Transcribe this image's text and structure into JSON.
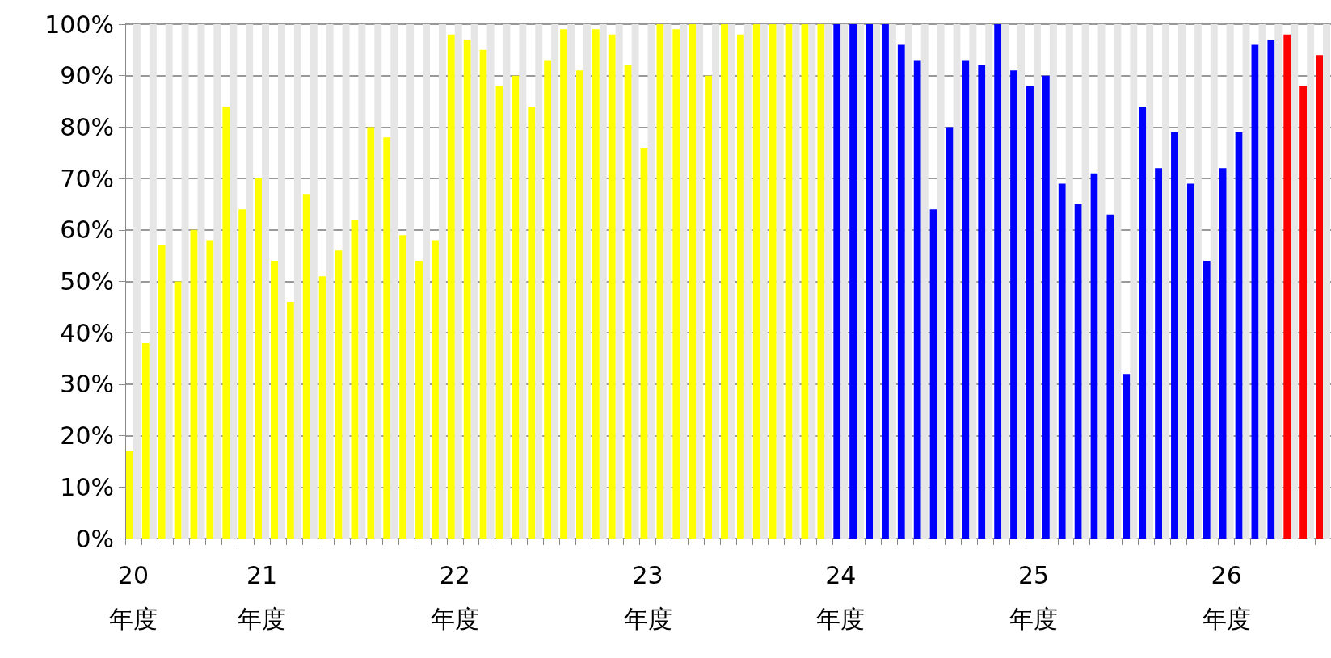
{
  "chart_data": {
    "type": "bar",
    "categories": [
      "20\n年度",
      null,
      null,
      null,
      null,
      null,
      null,
      null,
      "21\n年度",
      null,
      null,
      null,
      null,
      null,
      null,
      null,
      null,
      null,
      null,
      null,
      "22\n年度",
      null,
      null,
      null,
      null,
      null,
      null,
      null,
      null,
      null,
      null,
      null,
      "23\n年度",
      null,
      null,
      null,
      null,
      null,
      null,
      null,
      null,
      null,
      null,
      null,
      "24\n年度",
      null,
      null,
      null,
      null,
      null,
      null,
      null,
      null,
      null,
      null,
      null,
      "25\n年度",
      null,
      null,
      null,
      null,
      null,
      null,
      null,
      null,
      null,
      null,
      null,
      "26\n年度",
      null,
      null,
      null,
      null,
      null,
      null
    ],
    "series": [
      {
        "colors": [
          "#ffff00",
          "#ffff00",
          "#ffff00",
          "#ffff00",
          "#ffff00",
          "#ffff00",
          "#ffff00",
          "#ffff00",
          "#ffff00",
          "#ffff00",
          "#ffff00",
          "#ffff00",
          "#ffff00",
          "#ffff00",
          "#ffff00",
          "#ffff00",
          "#ffff00",
          "#ffff00",
          "#ffff00",
          "#ffff00",
          "#ffff00",
          "#ffff00",
          "#ffff00",
          "#ffff00",
          "#ffff00",
          "#ffff00",
          "#ffff00",
          "#ffff00",
          "#ffff00",
          "#ffff00",
          "#ffff00",
          "#ffff00",
          "#ffff00",
          "#ffff00",
          "#ffff00",
          "#ffff00",
          "#ffff00",
          "#ffff00",
          "#ffff00",
          "#ffff00",
          "#ffff00",
          "#ffff00",
          "#ffff00",
          "#ffff00",
          "#0000ff",
          "#0000ff",
          "#0000ff",
          "#0000ff",
          "#0000ff",
          "#0000ff",
          "#0000ff",
          "#0000ff",
          "#0000ff",
          "#0000ff",
          "#0000ff",
          "#0000ff",
          "#0000ff",
          "#0000ff",
          "#0000ff",
          "#0000ff",
          "#0000ff",
          "#0000ff",
          "#0000ff",
          "#0000ff",
          "#0000ff",
          "#0000ff",
          "#0000ff",
          "#0000ff",
          "#0000ff",
          "#0000ff",
          "#0000ff",
          "#0000ff",
          "#ff0000",
          "#ff0000",
          "#ff0000"
        ],
        "values": [
          17,
          38,
          57,
          50,
          60,
          58,
          84,
          64,
          70,
          54,
          46,
          67,
          51,
          56,
          62,
          80,
          78,
          59,
          54,
          58,
          98,
          97,
          95,
          88,
          90,
          84,
          93,
          99,
          91,
          99,
          98,
          92,
          76,
          100,
          99,
          100,
          90,
          100,
          98,
          100,
          100,
          100,
          100,
          100,
          100,
          100,
          100,
          100,
          96,
          93,
          64,
          80,
          93,
          92,
          100,
          91,
          88,
          90,
          69,
          65,
          71,
          63,
          32,
          84,
          72,
          79,
          69,
          54,
          72,
          79,
          96,
          97,
          98,
          88,
          94
        ]
      },
      {
        "color": "#e6e6e6",
        "values": [
          100,
          100,
          100,
          100,
          100,
          100,
          100,
          100,
          100,
          100,
          100,
          100,
          100,
          100,
          100,
          100,
          100,
          100,
          100,
          100,
          100,
          100,
          100,
          100,
          100,
          100,
          100,
          100,
          100,
          100,
          100,
          100,
          100,
          100,
          100,
          100,
          100,
          100,
          100,
          100,
          100,
          100,
          100,
          100,
          100,
          100,
          100,
          100,
          100,
          100,
          100,
          100,
          100,
          100,
          100,
          100,
          100,
          100,
          100,
          100,
          100,
          100,
          100,
          100,
          100,
          100,
          100,
          100,
          100,
          100,
          100,
          100,
          100,
          100,
          100
        ]
      }
    ],
    "ylim": [
      0,
      100
    ],
    "yticks": [
      {
        "value": 0,
        "label": "0%"
      },
      {
        "value": 10,
        "label": "10%"
      },
      {
        "value": 20,
        "label": "20%"
      },
      {
        "value": 30,
        "label": "30%"
      },
      {
        "value": 40,
        "label": "40%"
      },
      {
        "value": 50,
        "label": "50%"
      },
      {
        "value": 60,
        "label": "60%"
      },
      {
        "value": 70,
        "label": "70%"
      },
      {
        "value": 80,
        "label": "80%"
      },
      {
        "value": 90,
        "label": "90%"
      },
      {
        "value": 100,
        "label": "100%"
      }
    ],
    "grid": "y"
  }
}
